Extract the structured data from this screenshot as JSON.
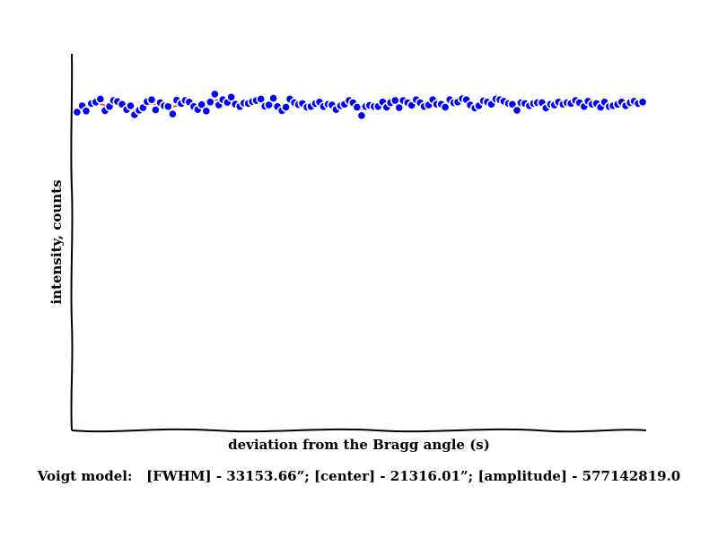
{
  "chart_data": {
    "type": "scatter",
    "xlabel": "deviation from the Bragg angle (s)",
    "ylabel": "intensity, counts",
    "grid": false,
    "legend": "none",
    "xlim": [
      0,
      1
    ],
    "ylim": [
      0,
      1
    ],
    "marker_color": "#0000ff",
    "marker_edge": "#000000",
    "fit_line_color": "#ff0000",
    "points": {
      "x": [
        0.003,
        0.012,
        0.019,
        0.028,
        0.036,
        0.044,
        0.052,
        0.06,
        0.067,
        0.074,
        0.082,
        0.09,
        0.097,
        0.104,
        0.112,
        0.119,
        0.126,
        0.134,
        0.141,
        0.149,
        0.156,
        0.163,
        0.171,
        0.178,
        0.186,
        0.193,
        0.2,
        0.208,
        0.215,
        0.222,
        0.23,
        0.237,
        0.245,
        0.252,
        0.259,
        0.267,
        0.274,
        0.281,
        0.289,
        0.296,
        0.304,
        0.311,
        0.318,
        0.326,
        0.333,
        0.34,
        0.348,
        0.355,
        0.363,
        0.37,
        0.377,
        0.385,
        0.392,
        0.399,
        0.407,
        0.414,
        0.422,
        0.429,
        0.436,
        0.444,
        0.451,
        0.458,
        0.466,
        0.473,
        0.481,
        0.488,
        0.495,
        0.503,
        0.51,
        0.517,
        0.525,
        0.532,
        0.54,
        0.547,
        0.554,
        0.562,
        0.569,
        0.576,
        0.584,
        0.591,
        0.599,
        0.606,
        0.613,
        0.621,
        0.628,
        0.635,
        0.643,
        0.65,
        0.658,
        0.665,
        0.672,
        0.68,
        0.687,
        0.694,
        0.702,
        0.709,
        0.717,
        0.724,
        0.731,
        0.739,
        0.746,
        0.753,
        0.761,
        0.768,
        0.776,
        0.783,
        0.79,
        0.798,
        0.805,
        0.812,
        0.82,
        0.827,
        0.835,
        0.842,
        0.849,
        0.857,
        0.864,
        0.871,
        0.879,
        0.886,
        0.894,
        0.901,
        0.908,
        0.916,
        0.923,
        0.93,
        0.938,
        0.945,
        0.953,
        0.96,
        0.967,
        0.975,
        0.982,
        0.989,
        0.997
      ],
      "y": [
        0.845,
        0.862,
        0.848,
        0.868,
        0.872,
        0.88,
        0.849,
        0.86,
        0.876,
        0.873,
        0.866,
        0.852,
        0.862,
        0.838,
        0.85,
        0.857,
        0.873,
        0.878,
        0.851,
        0.87,
        0.862,
        0.86,
        0.84,
        0.877,
        0.868,
        0.876,
        0.872,
        0.86,
        0.852,
        0.865,
        0.848,
        0.872,
        0.893,
        0.864,
        0.878,
        0.871,
        0.885,
        0.866,
        0.86,
        0.869,
        0.868,
        0.873,
        0.876,
        0.88,
        0.861,
        0.864,
        0.882,
        0.86,
        0.849,
        0.858,
        0.88,
        0.87,
        0.865,
        0.868,
        0.858,
        0.86,
        0.868,
        0.872,
        0.86,
        0.866,
        0.864,
        0.852,
        0.862,
        0.866,
        0.876,
        0.87,
        0.858,
        0.836,
        0.86,
        0.863,
        0.86,
        0.86,
        0.872,
        0.858,
        0.87,
        0.876,
        0.857,
        0.876,
        0.87,
        0.863,
        0.878,
        0.87,
        0.86,
        0.864,
        0.878,
        0.866,
        0.866,
        0.858,
        0.878,
        0.87,
        0.872,
        0.881,
        0.878,
        0.864,
        0.856,
        0.862,
        0.875,
        0.872,
        0.866,
        0.88,
        0.878,
        0.874,
        0.868,
        0.866,
        0.85,
        0.87,
        0.868,
        0.862,
        0.868,
        0.87,
        0.87,
        0.856,
        0.866,
        0.864,
        0.872,
        0.866,
        0.87,
        0.868,
        0.876,
        0.87,
        0.86,
        0.874,
        0.866,
        0.868,
        0.858,
        0.872,
        0.86,
        0.862,
        0.866,
        0.872,
        0.862,
        0.87,
        0.874,
        0.868,
        0.872
      ]
    }
  },
  "caption": "Voigt model:   [FWHM] - 33153.66”; [center] - 21316.01”; [amplitude] - 577142819.0"
}
